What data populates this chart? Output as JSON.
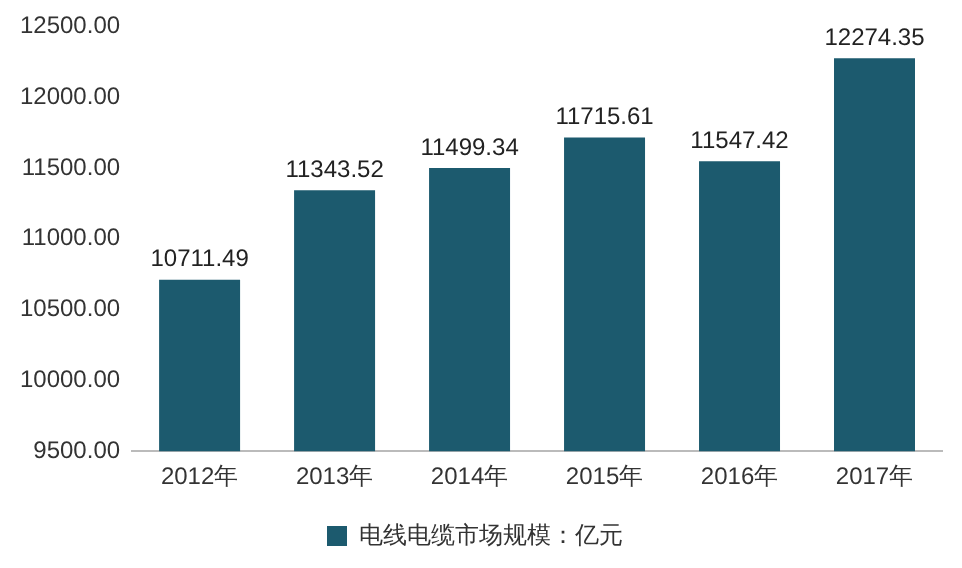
{
  "chart_data": {
    "type": "bar",
    "categories": [
      "2012年",
      "2013年",
      "2014年",
      "2015年",
      "2016年",
      "2017年"
    ],
    "series": [
      {
        "name": "电线电缆市场规模：亿元",
        "color": "#1c5a6e",
        "values": [
          10711.49,
          11343.52,
          11499.34,
          11715.61,
          11547.42,
          12274.35
        ]
      }
    ],
    "ylim": [
      9500,
      12500
    ],
    "yticks": [
      {
        "value": 9500,
        "label": "9500.00"
      },
      {
        "value": 10000,
        "label": "10000.00"
      },
      {
        "value": 10500,
        "label": "10500.00"
      },
      {
        "value": 11000,
        "label": "11000.00"
      },
      {
        "value": 11500,
        "label": "11500.00"
      },
      {
        "value": 12000,
        "label": "12000.00"
      },
      {
        "value": 12500,
        "label": "12500.00"
      }
    ],
    "data_labels": true,
    "legend": "bottom",
    "grid": false
  }
}
